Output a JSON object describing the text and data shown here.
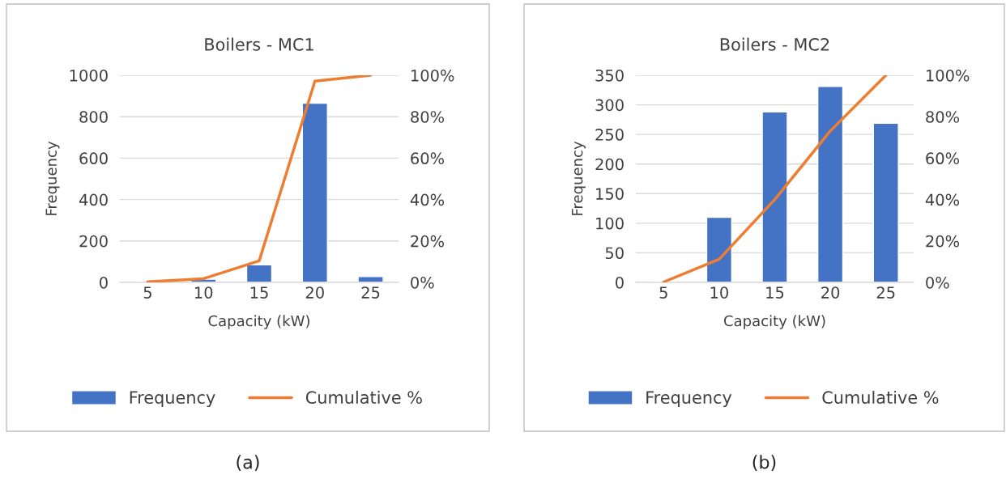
{
  "chart_data": [
    {
      "type": "bar",
      "title": "Boilers - MC1",
      "xlabel": "Capacity (kW)",
      "ylabel": "Frequency",
      "categories": [
        "5",
        "10",
        "15",
        "20",
        "25"
      ],
      "series": [
        {
          "name": "Frequency",
          "color": "#4472c4",
          "values": [
            null,
            15,
            85,
            865,
            28
          ]
        },
        {
          "name": "Cumulative %",
          "type": "line",
          "axis": "y2",
          "color": "#ed7d31",
          "values": [
            0.3,
            1.8,
            10.4,
            97.2,
            100
          ]
        }
      ],
      "ylim": [
        0,
        1000
      ],
      "yticks": [
        0,
        200,
        400,
        600,
        800,
        1000
      ],
      "y2lim": [
        0,
        100
      ],
      "y2ticks": [
        {
          "value": 0,
          "label": "0%"
        },
        {
          "value": 20,
          "label": "20%"
        },
        {
          "value": 40,
          "label": "40%"
        },
        {
          "value": 60,
          "label": "60%"
        },
        {
          "value": 80,
          "label": "80%"
        },
        {
          "value": 100,
          "label": "100%"
        }
      ],
      "grid": "y",
      "legend": "bottom",
      "annotations": [
        "(a)"
      ]
    },
    {
      "type": "bar",
      "title": "Boilers - MC2",
      "xlabel": "Capacity (kW)",
      "ylabel": "Frequency",
      "categories": [
        "5",
        "10",
        "15",
        "20",
        "25"
      ],
      "series": [
        {
          "name": "Frequency",
          "color": "#4472c4",
          "values": [
            null,
            110,
            288,
            331,
            269
          ]
        },
        {
          "name": "Cumulative %",
          "type": "line",
          "axis": "y2",
          "color": "#ed7d31",
          "values": [
            0.2,
            11.2,
            40,
            73.1,
            100
          ]
        }
      ],
      "ylim": [
        0,
        350
      ],
      "yticks": [
        0,
        50,
        100,
        150,
        200,
        250,
        300,
        350
      ],
      "y2lim": [
        0,
        100
      ],
      "y2ticks": [
        {
          "value": 0,
          "label": "0%"
        },
        {
          "value": 20,
          "label": "20%"
        },
        {
          "value": 40,
          "label": "40%"
        },
        {
          "value": 60,
          "label": "60%"
        },
        {
          "value": 80,
          "label": "80%"
        },
        {
          "value": 100,
          "label": "100%"
        }
      ],
      "grid": "y",
      "legend": "bottom",
      "annotations": [
        "(b)"
      ]
    }
  ]
}
